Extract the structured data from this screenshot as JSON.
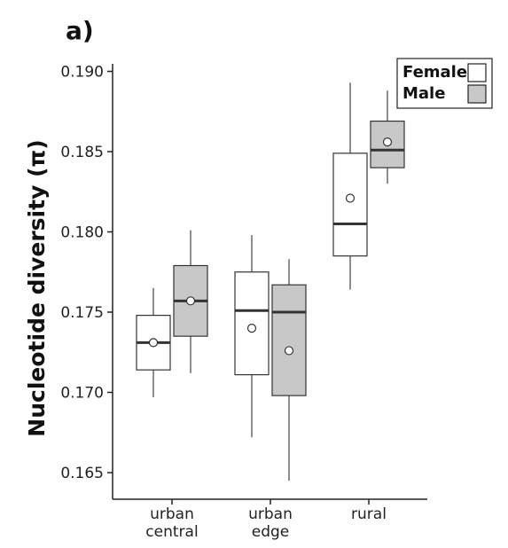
{
  "panel_label": "a)",
  "chart_data": {
    "type": "box",
    "ylabel": "Nucleotide diversity (π)",
    "xlabel": "",
    "ylim": [
      0.1635,
      0.1905
    ],
    "yticks": [
      "0.165",
      "0.170",
      "0.175",
      "0.180",
      "0.185",
      "0.190"
    ],
    "categories": [
      {
        "lines": [
          "urban",
          "central"
        ]
      },
      {
        "lines": [
          "urban",
          "edge"
        ]
      },
      {
        "lines": [
          "rural"
        ]
      }
    ],
    "legend": {
      "position": "top-right",
      "entries": [
        "Female",
        "Male"
      ]
    },
    "series": [
      {
        "name": "Female",
        "color": "#ffffff",
        "boxes": [
          {
            "min": 0.1697,
            "q1": 0.1714,
            "median": 0.1731,
            "q3": 0.1748,
            "max": 0.1765,
            "mean": 0.1731
          },
          {
            "min": 0.1672,
            "q1": 0.1711,
            "median": 0.1751,
            "q3": 0.1775,
            "max": 0.1798,
            "mean": 0.174
          },
          {
            "min": 0.1764,
            "q1": 0.1785,
            "median": 0.1805,
            "q3": 0.1849,
            "max": 0.1893,
            "mean": 0.1821
          }
        ]
      },
      {
        "name": "Male",
        "color": "#c8c8c8",
        "boxes": [
          {
            "min": 0.1712,
            "q1": 0.1735,
            "median": 0.1757,
            "q3": 0.1779,
            "max": 0.1801,
            "mean": 0.1757
          },
          {
            "min": 0.1645,
            "q1": 0.1698,
            "median": 0.175,
            "q3": 0.1767,
            "max": 0.1783,
            "mean": 0.1726
          },
          {
            "min": 0.183,
            "q1": 0.184,
            "median": 0.1851,
            "q3": 0.1869,
            "max": 0.1888,
            "mean": 0.1856
          }
        ]
      }
    ]
  }
}
